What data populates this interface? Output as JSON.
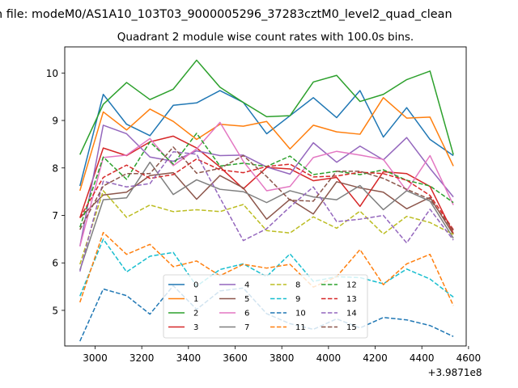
{
  "chart_data": {
    "type": "line",
    "suptitle": "n file: modeM0/AS1A10_103T03_9000005296_37283cztM0_level2_quad_clean",
    "title": "Quadrant 2 module wise count rates with 100.0s bins.",
    "x_offset_label": "+3.9871e8",
    "xlim": [
      2870,
      4590
    ],
    "ylim": [
      4.25,
      10.55
    ],
    "x_ticks": [
      3000,
      3200,
      3400,
      3600,
      3800,
      4000,
      4200,
      4400,
      4600
    ],
    "x_tick_labels": [
      "3000",
      "3200",
      "3400",
      "3600",
      "3800",
      "4000",
      "4200",
      "4400",
      "4600"
    ],
    "y_ticks": [
      5,
      6,
      7,
      8,
      9,
      10
    ],
    "y_tick_labels": [
      "5",
      "6",
      "7",
      "8",
      "9",
      "10"
    ],
    "grid": false,
    "legend_placement": "lower-center",
    "legend_columns": 4,
    "x": [
      2935,
      3035,
      3135,
      3235,
      3335,
      3435,
      3535,
      3635,
      3735,
      3835,
      3935,
      4035,
      4135,
      4235,
      4335,
      4435,
      4535
    ],
    "series": [
      {
        "name": "0",
        "color": "#1f77b4",
        "dash": "solid",
        "values": [
          7.62,
          9.55,
          8.92,
          8.68,
          9.32,
          9.37,
          9.63,
          9.38,
          8.72,
          9.1,
          9.48,
          9.06,
          9.63,
          8.65,
          9.27,
          8.6,
          8.26
        ]
      },
      {
        "name": "1",
        "color": "#ff7f0e",
        "dash": "solid",
        "values": [
          7.52,
          9.18,
          8.8,
          9.24,
          8.98,
          8.6,
          8.92,
          8.88,
          8.98,
          8.4,
          8.9,
          8.76,
          8.71,
          9.48,
          9.05,
          9.07,
          8.04
        ]
      },
      {
        "name": "2",
        "color": "#2ca02c",
        "dash": "solid",
        "values": [
          8.28,
          9.34,
          9.8,
          9.44,
          9.66,
          10.27,
          9.7,
          9.38,
          9.08,
          9.1,
          9.81,
          9.95,
          9.4,
          9.55,
          9.86,
          10.04,
          8.28
        ]
      },
      {
        "name": "3",
        "color": "#d62728",
        "dash": "solid",
        "values": [
          6.95,
          8.42,
          8.26,
          8.55,
          8.67,
          8.42,
          8.02,
          7.56,
          8.01,
          7.98,
          7.73,
          7.8,
          7.19,
          7.92,
          7.88,
          7.61,
          6.62
        ]
      },
      {
        "name": "4",
        "color": "#9467bd",
        "dash": "solid",
        "values": [
          6.35,
          8.9,
          8.72,
          8.23,
          8.14,
          8.36,
          8.26,
          8.27,
          8.02,
          7.87,
          8.53,
          8.12,
          8.46,
          8.17,
          8.64,
          7.99,
          7.39
        ]
      },
      {
        "name": "5",
        "color": "#8c564b",
        "dash": "solid",
        "values": [
          6.95,
          7.43,
          7.49,
          7.84,
          7.9,
          7.34,
          7.84,
          7.58,
          6.92,
          7.34,
          7.03,
          7.71,
          7.58,
          7.49,
          7.14,
          7.38,
          6.6
        ]
      },
      {
        "name": "6",
        "color": "#e377c2",
        "dash": "solid",
        "values": [
          6.35,
          8.22,
          8.27,
          8.62,
          8.05,
          8.4,
          8.96,
          8.14,
          7.52,
          7.61,
          8.22,
          8.35,
          8.27,
          8.18,
          7.52,
          8.26,
          7.22
        ]
      },
      {
        "name": "7",
        "color": "#7f7f7f",
        "dash": "solid",
        "values": [
          5.85,
          7.33,
          7.37,
          8.12,
          7.44,
          7.75,
          7.55,
          7.5,
          7.27,
          7.52,
          7.39,
          7.33,
          7.63,
          7.12,
          7.52,
          7.3,
          6.52
        ]
      },
      {
        "name": "8",
        "color": "#bcbd22",
        "dash": "dashed",
        "values": [
          5.97,
          7.52,
          6.96,
          7.22,
          7.08,
          7.12,
          7.08,
          7.23,
          6.68,
          6.63,
          6.97,
          6.73,
          7.09,
          6.61,
          6.98,
          6.85,
          6.6
        ]
      },
      {
        "name": "9",
        "color": "#17becf",
        "dash": "dashed",
        "values": [
          5.3,
          6.5,
          5.81,
          6.14,
          6.22,
          5.51,
          5.86,
          5.98,
          5.71,
          6.19,
          5.61,
          5.71,
          5.69,
          5.56,
          5.87,
          5.66,
          5.28
        ]
      },
      {
        "name": "10",
        "color": "#1f77b4",
        "dash": "dashed",
        "values": [
          4.35,
          5.45,
          5.31,
          4.92,
          5.52,
          5.02,
          5.41,
          5.47,
          4.93,
          4.72,
          4.6,
          4.82,
          4.63,
          4.85,
          4.8,
          4.68,
          4.45
        ]
      },
      {
        "name": "11",
        "color": "#ff7f0e",
        "dash": "dashed",
        "values": [
          5.17,
          6.64,
          6.18,
          6.39,
          5.92,
          6.04,
          5.73,
          5.97,
          5.89,
          5.97,
          5.49,
          5.71,
          6.28,
          5.54,
          5.98,
          6.18,
          5.1
        ]
      },
      {
        "name": "12",
        "color": "#2ca02c",
        "dash": "dashed",
        "values": [
          6.75,
          8.23,
          7.76,
          8.55,
          8.08,
          8.73,
          8.04,
          8.1,
          8.03,
          8.25,
          7.86,
          7.93,
          7.86,
          7.96,
          7.74,
          7.62,
          7.27
        ]
      },
      {
        "name": "13",
        "color": "#d62728",
        "dash": "dashed",
        "values": [
          6.95,
          7.8,
          8.06,
          7.78,
          7.86,
          8.19,
          7.96,
          7.9,
          8.03,
          8.08,
          7.81,
          7.83,
          7.91,
          7.88,
          7.74,
          7.42,
          6.7
        ]
      },
      {
        "name": "14",
        "color": "#9467bd",
        "dash": "dashed",
        "values": [
          5.82,
          7.72,
          7.6,
          7.67,
          8.34,
          8.29,
          7.37,
          6.47,
          6.72,
          7.18,
          7.6,
          6.87,
          6.92,
          7.0,
          6.42,
          7.13,
          6.48
        ]
      },
      {
        "name": "15",
        "color": "#8c564b",
        "dash": "dashed",
        "values": [
          6.7,
          7.62,
          7.88,
          7.88,
          8.44,
          7.89,
          7.99,
          8.26,
          7.82,
          7.32,
          7.3,
          7.93,
          7.93,
          7.78,
          7.55,
          7.34,
          6.68
        ]
      }
    ]
  }
}
